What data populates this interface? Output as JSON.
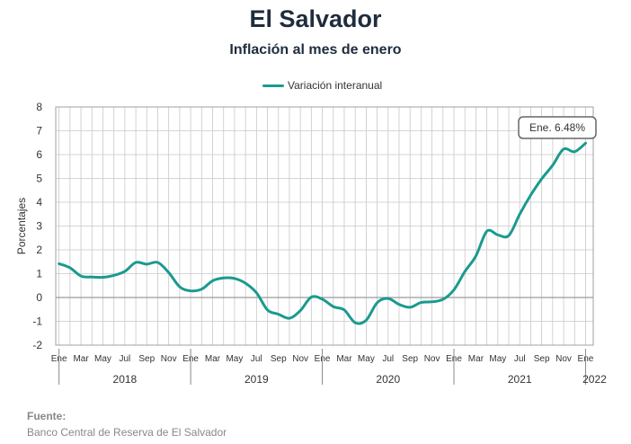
{
  "colors": {
    "series": "#1a9a8f",
    "grid": "#c8c8c8",
    "axis": "#888888",
    "text": "#333333"
  },
  "chart_data": {
    "type": "line",
    "title": "El Salvador",
    "subtitle": "Inflación al mes de enero",
    "ylabel": "Porcentajes",
    "xlabel": "",
    "ylim": [
      -2,
      8
    ],
    "yticks": [
      "8",
      "7",
      "6",
      "5",
      "4",
      "3",
      "2",
      "1",
      "0",
      "-1",
      "-2"
    ],
    "grid": true,
    "legend": "top-center",
    "tick_labels": [
      "Ene",
      "Mar",
      "May",
      "Jul",
      "Sep",
      "Nov",
      "Ene",
      "Mar",
      "May",
      "Jul",
      "Sep",
      "Nov",
      "Ene",
      "Mar",
      "May",
      "Jul",
      "Sep",
      "Nov",
      "Ene",
      "Mar",
      "May",
      "Jul",
      "Sep",
      "Nov",
      "Ene"
    ],
    "years": [
      "2018",
      "2019",
      "2020",
      "2021",
      "2022"
    ],
    "x": [
      "2018-01",
      "2018-02",
      "2018-03",
      "2018-04",
      "2018-05",
      "2018-06",
      "2018-07",
      "2018-08",
      "2018-09",
      "2018-10",
      "2018-11",
      "2018-12",
      "2019-01",
      "2019-02",
      "2019-03",
      "2019-04",
      "2019-05",
      "2019-06",
      "2019-07",
      "2019-08",
      "2019-09",
      "2019-10",
      "2019-11",
      "2019-12",
      "2020-01",
      "2020-02",
      "2020-03",
      "2020-04",
      "2020-05",
      "2020-06",
      "2020-07",
      "2020-08",
      "2020-09",
      "2020-10",
      "2020-11",
      "2020-12",
      "2021-01",
      "2021-02",
      "2021-03",
      "2021-04",
      "2021-05",
      "2021-06",
      "2021-07",
      "2021-08",
      "2021-09",
      "2021-10",
      "2021-11",
      "2021-12",
      "2022-01"
    ],
    "series": [
      {
        "name": "Variación interanual",
        "values": [
          1.42,
          1.25,
          0.9,
          0.86,
          0.85,
          0.93,
          1.1,
          1.47,
          1.4,
          1.47,
          1.05,
          0.45,
          0.28,
          0.35,
          0.7,
          0.82,
          0.8,
          0.6,
          0.2,
          -0.52,
          -0.7,
          -0.87,
          -0.55,
          0.02,
          -0.07,
          -0.38,
          -0.52,
          -1.06,
          -0.95,
          -0.22,
          -0.04,
          -0.29,
          -0.41,
          -0.21,
          -0.18,
          -0.08,
          0.32,
          1.09,
          1.74,
          2.78,
          2.63,
          2.6,
          3.5,
          4.3,
          4.98,
          5.55,
          6.23,
          6.12,
          6.48
        ]
      }
    ],
    "annotation": {
      "text": "Ene. 6.48%",
      "x": "2022-01",
      "y": 6.48
    }
  },
  "source": {
    "label": "Fuente:",
    "text": "Banco Central de Reserva de El Salvador"
  }
}
